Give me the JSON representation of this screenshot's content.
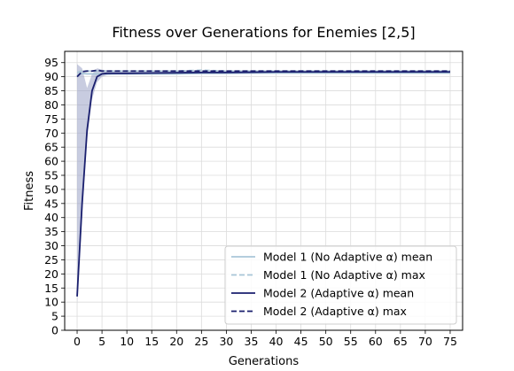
{
  "chart_data": {
    "type": "line",
    "title": "Fitness over Generations for Enemies [2,5]",
    "xlabel": "Generations",
    "ylabel": "Fitness",
    "xlim": [
      -2.5,
      77.5
    ],
    "ylim": [
      0,
      99
    ],
    "xticks": [
      0,
      5,
      10,
      15,
      20,
      25,
      30,
      35,
      40,
      45,
      50,
      55,
      60,
      65,
      70,
      75
    ],
    "yticks": [
      0,
      5,
      10,
      15,
      20,
      25,
      30,
      35,
      40,
      45,
      50,
      55,
      60,
      65,
      70,
      75,
      80,
      85,
      90,
      95
    ],
    "grid": true,
    "legend_position": "lower-right",
    "colors": {
      "model1": "#a9c6d8",
      "model2": "#1a1f6e",
      "band": "#9aa3c7"
    },
    "series": [
      {
        "name": "Model 1 (No Adaptive α) mean",
        "color": "#a9c6d8",
        "style": "solid",
        "x": [
          0,
          1,
          2,
          3,
          4,
          5,
          6,
          8,
          10,
          15,
          20,
          25,
          30,
          35,
          40,
          45,
          50,
          55,
          60,
          65,
          70,
          75
        ],
        "y": [
          90.5,
          91.2,
          91.0,
          91.0,
          91.0,
          91.0,
          91.0,
          91.0,
          91.0,
          91.0,
          91.0,
          91.2,
          91.2,
          91.3,
          91.3,
          91.3,
          91.3,
          91.3,
          91.3,
          91.3,
          91.3,
          91.3
        ]
      },
      {
        "name": "Model 1 (No Adaptive α) max",
        "color": "#a9c6d8",
        "style": "dashed",
        "x": [
          0,
          1,
          2,
          3,
          4,
          5,
          10,
          15,
          20,
          25,
          30,
          35,
          40,
          45,
          50,
          55,
          60,
          65,
          70,
          75
        ],
        "y": [
          91.5,
          92.0,
          92.0,
          92.0,
          92.0,
          92.0,
          92.0,
          92.0,
          92.0,
          92.3,
          92.0,
          92.0,
          92.0,
          92.0,
          92.0,
          92.0,
          92.0,
          92.0,
          92.0,
          92.0
        ]
      },
      {
        "name": "Model 2 (Adaptive α) mean",
        "color": "#1a1f6e",
        "style": "solid",
        "x": [
          0,
          1,
          2,
          3,
          4,
          5,
          6,
          8,
          10,
          15,
          20,
          25,
          30,
          35,
          40,
          45,
          50,
          55,
          60,
          65,
          70,
          75
        ],
        "y": [
          12.0,
          45.0,
          71.0,
          85.0,
          90.0,
          91.0,
          91.2,
          91.2,
          91.2,
          91.3,
          91.4,
          91.5,
          91.5,
          91.6,
          91.7,
          91.7,
          91.7,
          91.7,
          91.7,
          91.7,
          91.7,
          91.7
        ]
      },
      {
        "name": "Model 2 (Adaptive α) max",
        "color": "#1a1f6e",
        "style": "dashed",
        "x": [
          0,
          1,
          2,
          3,
          4,
          5,
          10,
          15,
          20,
          25,
          30,
          35,
          40,
          45,
          50,
          55,
          60,
          65,
          70,
          75
        ],
        "y": [
          90.0,
          91.8,
          92.0,
          92.0,
          92.3,
          92.0,
          92.0,
          92.0,
          92.0,
          92.0,
          92.0,
          92.0,
          92.0,
          92.0,
          92.0,
          92.0,
          92.0,
          92.0,
          92.0,
          92.0
        ]
      }
    ],
    "band": {
      "color": "#9aa3c7",
      "x": [
        0,
        1,
        2,
        3,
        4,
        5,
        6,
        8,
        10,
        20,
        30,
        40,
        50,
        60,
        70,
        75
      ],
      "lower": [
        9.5,
        40.0,
        68.0,
        82.0,
        88.0,
        90.0,
        90.5,
        90.8,
        90.8,
        90.9,
        91.0,
        91.2,
        91.2,
        91.2,
        91.2,
        91.2
      ],
      "upper": [
        94.5,
        93.0,
        86.0,
        91.0,
        93.0,
        92.5,
        92.2,
        92.0,
        92.0,
        92.0,
        92.0,
        92.0,
        92.0,
        92.0,
        92.0,
        92.0
      ]
    }
  }
}
